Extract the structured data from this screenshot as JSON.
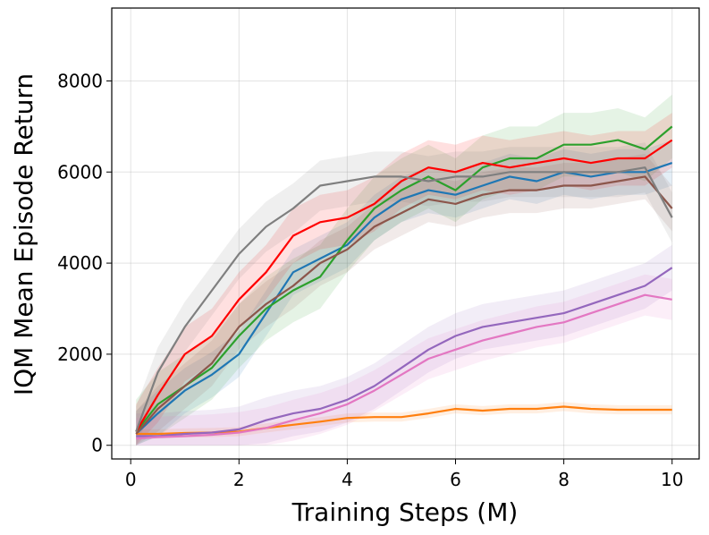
{
  "chart_data": {
    "type": "line",
    "title": "",
    "xlabel": "Training Steps (M)",
    "ylabel": "IQM Mean Episode Return",
    "xlim": [
      -0.35,
      10.5
    ],
    "ylim": [
      -300,
      9600
    ],
    "xticks": [
      0,
      2,
      4,
      6,
      8,
      10
    ],
    "xtick_labels": [
      "0",
      "2",
      "4",
      "6",
      "8",
      "10"
    ],
    "yticks": [
      0,
      2000,
      4000,
      6000,
      8000
    ],
    "ytick_labels": [
      "0",
      "2000",
      "4000",
      "6000",
      "8000"
    ],
    "grid": true,
    "legend": "none",
    "x": [
      0.1,
      0.5,
      1.0,
      1.5,
      2.0,
      2.5,
      3.0,
      3.5,
      4.0,
      4.5,
      5.0,
      5.5,
      6.0,
      6.5,
      7.0,
      7.5,
      8.0,
      8.5,
      9.0,
      9.5,
      10.0
    ],
    "series": [
      {
        "name": "blue",
        "color": "#1f77b4",
        "band": 500,
        "values": [
          250,
          700,
          1200,
          1550,
          2000,
          2900,
          3800,
          4100,
          4400,
          5000,
          5400,
          5600,
          5500,
          5700,
          5900,
          5800,
          6000,
          5900,
          6000,
          6000,
          6200
        ]
      },
      {
        "name": "orange",
        "color": "#ff7f0e",
        "band": 100,
        "values": [
          250,
          250,
          270,
          280,
          300,
          380,
          450,
          520,
          600,
          620,
          620,
          700,
          800,
          760,
          800,
          800,
          850,
          800,
          780,
          780,
          780
        ]
      },
      {
        "name": "green",
        "color": "#2ca02c",
        "band": 700,
        "values": [
          300,
          900,
          1300,
          1700,
          2400,
          3000,
          3400,
          3700,
          4500,
          5200,
          5600,
          5900,
          5600,
          6100,
          6300,
          6300,
          6600,
          6600,
          6700,
          6500,
          7000
        ]
      },
      {
        "name": "red",
        "color": "#ff0000",
        "band": 600,
        "values": [
          300,
          1100,
          2000,
          2400,
          3200,
          3800,
          4600,
          4900,
          5000,
          5300,
          5800,
          6100,
          6000,
          6200,
          6100,
          6200,
          6300,
          6200,
          6300,
          6300,
          6700
        ]
      },
      {
        "name": "purple",
        "color": "#9467bd",
        "band": 500,
        "values": [
          200,
          200,
          250,
          280,
          350,
          550,
          700,
          800,
          1000,
          1300,
          1700,
          2100,
          2400,
          2600,
          2700,
          2800,
          2900,
          3100,
          3300,
          3500,
          3900
        ]
      },
      {
        "name": "brown",
        "color": "#8c564b",
        "band": 500,
        "values": [
          250,
          800,
          1300,
          1800,
          2600,
          3100,
          3500,
          4000,
          4300,
          4800,
          5100,
          5400,
          5300,
          5500,
          5600,
          5600,
          5700,
          5700,
          5800,
          5900,
          5200
        ]
      },
      {
        "name": "pink",
        "color": "#e377c2",
        "band": 450,
        "values": [
          150,
          180,
          200,
          230,
          280,
          380,
          550,
          700,
          900,
          1200,
          1550,
          1900,
          2100,
          2300,
          2450,
          2600,
          2700,
          2900,
          3100,
          3300,
          3200
        ]
      },
      {
        "name": "gray",
        "color": "#7f7f7f",
        "band": 550,
        "values": [
          300,
          1600,
          2600,
          3400,
          4200,
          4800,
          5200,
          5700,
          5800,
          5900,
          5900,
          5800,
          5900,
          5900,
          6000,
          6000,
          6000,
          6000,
          6000,
          6100,
          5000
        ]
      }
    ]
  }
}
